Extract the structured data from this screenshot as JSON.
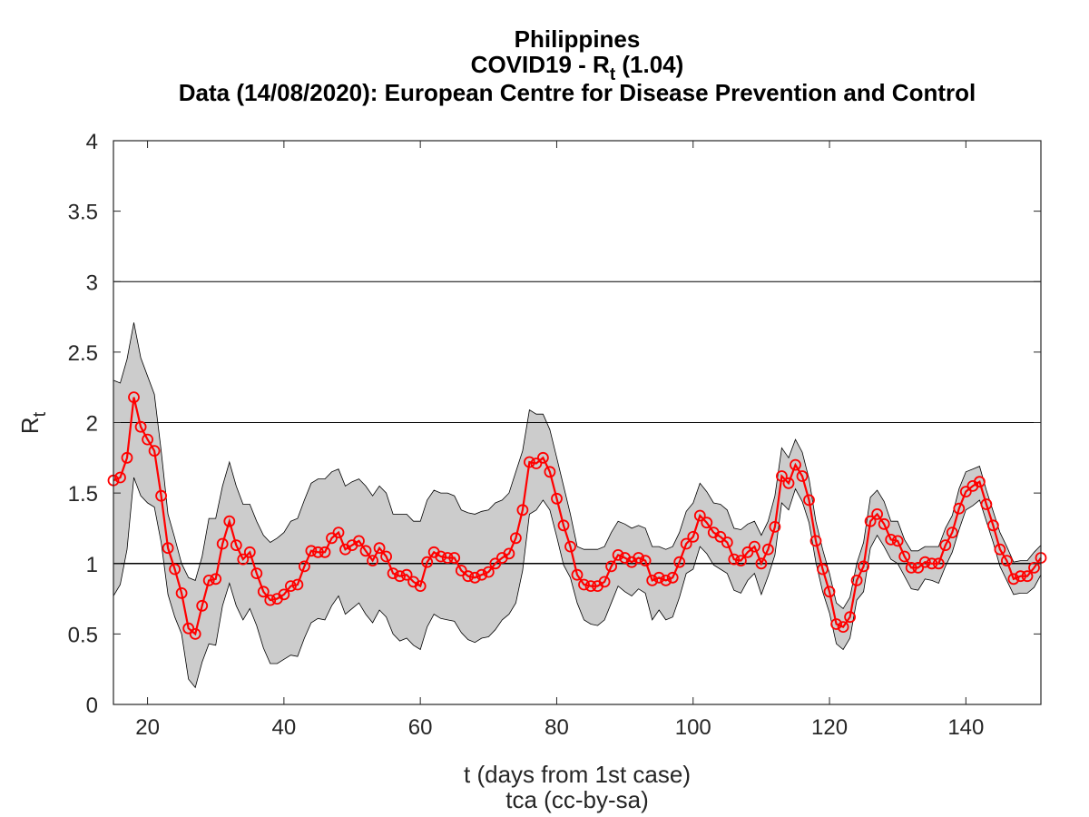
{
  "chart_data": {
    "type": "line",
    "title_line1": "Philippines",
    "title_line2_prefix": "COVID19 - R",
    "title_line2_sub": "t",
    "title_line2_suffix": " (1.04)",
    "title_line3": "Data (14/08/2020): European Centre for Disease Prevention and Control",
    "xlabel": "t (days from 1st case)",
    "ylabel_main": "R",
    "ylabel_sub": "t",
    "footer": "tca (cc-by-sa)",
    "xlim": [
      15,
      151
    ],
    "ylim": [
      0,
      4
    ],
    "x_ticks": [
      20,
      40,
      60,
      80,
      100,
      120,
      140
    ],
    "y_ticks": [
      0,
      0.5,
      1,
      1.5,
      2,
      2.5,
      3,
      3.5,
      4
    ],
    "reference_lines": [
      1,
      2,
      3
    ],
    "colors": {
      "series": "#ff0000",
      "band_fill": "#cccccc",
      "band_edge": "#000000",
      "axis": "#262626"
    },
    "series": [
      {
        "name": "",
        "x": [
          15,
          16,
          17,
          18,
          19,
          20,
          21,
          22,
          23,
          24,
          25,
          26,
          27,
          28,
          29,
          30,
          31,
          32,
          33,
          34,
          35,
          36,
          37,
          38,
          39,
          40,
          41,
          42,
          43,
          44,
          45,
          46,
          47,
          48,
          49,
          50,
          51,
          52,
          53,
          54,
          55,
          56,
          57,
          58,
          59,
          60,
          61,
          62,
          63,
          64,
          65,
          66,
          67,
          68,
          69,
          70,
          71,
          72,
          73,
          74,
          75,
          76,
          77,
          78,
          79,
          80,
          81,
          82,
          83,
          84,
          85,
          86,
          87,
          88,
          89,
          90,
          91,
          92,
          93,
          94,
          95,
          96,
          97,
          98,
          99,
          100,
          101,
          102,
          103,
          104,
          105,
          106,
          107,
          108,
          109,
          110,
          111,
          112,
          113,
          114,
          115,
          116,
          117,
          118,
          119,
          120,
          121,
          122,
          123,
          124,
          125,
          126,
          127,
          128,
          129,
          130,
          131,
          132,
          133,
          134,
          135,
          136,
          137,
          138,
          139,
          140,
          141,
          142,
          143,
          144,
          145,
          146,
          147,
          148,
          149,
          150,
          151
        ],
        "y": [
          1.59,
          1.61,
          1.75,
          2.18,
          1.97,
          1.88,
          1.8,
          1.48,
          1.11,
          0.96,
          0.79,
          0.54,
          0.5,
          0.7,
          0.88,
          0.89,
          1.14,
          1.3,
          1.13,
          1.03,
          1.08,
          0.93,
          0.8,
          0.74,
          0.75,
          0.78,
          0.84,
          0.85,
          0.98,
          1.09,
          1.08,
          1.08,
          1.18,
          1.22,
          1.1,
          1.13,
          1.16,
          1.09,
          1.02,
          1.11,
          1.05,
          0.93,
          0.91,
          0.92,
          0.87,
          0.84,
          1.01,
          1.08,
          1.05,
          1.04,
          1.04,
          0.95,
          0.91,
          0.9,
          0.92,
          0.94,
          1.0,
          1.04,
          1.07,
          1.18,
          1.38,
          1.72,
          1.71,
          1.75,
          1.65,
          1.46,
          1.27,
          1.12,
          0.92,
          0.85,
          0.84,
          0.84,
          0.87,
          0.98,
          1.06,
          1.04,
          1.01,
          1.04,
          1.02,
          0.88,
          0.9,
          0.88,
          0.9,
          1.01,
          1.14,
          1.19,
          1.34,
          1.29,
          1.22,
          1.19,
          1.15,
          1.03,
          1.02,
          1.08,
          1.12,
          1.0,
          1.1,
          1.26,
          1.62,
          1.57,
          1.7,
          1.62,
          1.45,
          1.16,
          0.96,
          0.8,
          0.57,
          0.55,
          0.62,
          0.88,
          0.98,
          1.3,
          1.35,
          1.28,
          1.17,
          1.16,
          1.05,
          0.97,
          0.97,
          1.01,
          1.0,
          1.0,
          1.13,
          1.22,
          1.39,
          1.51,
          1.55,
          1.58,
          1.42,
          1.27,
          1.1,
          1.02,
          0.89,
          0.91,
          0.91,
          0.97,
          1.04
        ]
      }
    ],
    "band": {
      "x": [
        15,
        16,
        17,
        18,
        19,
        20,
        21,
        22,
        23,
        24,
        25,
        26,
        27,
        28,
        29,
        30,
        31,
        32,
        33,
        34,
        35,
        36,
        37,
        38,
        39,
        40,
        41,
        42,
        43,
        44,
        45,
        46,
        47,
        48,
        49,
        50,
        51,
        52,
        53,
        54,
        55,
        56,
        57,
        58,
        59,
        60,
        61,
        62,
        63,
        64,
        65,
        66,
        67,
        68,
        69,
        70,
        71,
        72,
        73,
        74,
        75,
        76,
        77,
        78,
        79,
        80,
        81,
        82,
        83,
        84,
        85,
        86,
        87,
        88,
        89,
        90,
        91,
        92,
        93,
        94,
        95,
        96,
        97,
        98,
        99,
        100,
        101,
        102,
        103,
        104,
        105,
        106,
        107,
        108,
        109,
        110,
        111,
        112,
        113,
        114,
        115,
        116,
        117,
        118,
        119,
        120,
        121,
        122,
        123,
        124,
        125,
        126,
        127,
        128,
        129,
        130,
        131,
        132,
        133,
        134,
        135,
        136,
        137,
        138,
        139,
        140,
        141,
        142,
        143,
        144,
        145,
        146,
        147,
        148,
        149,
        150,
        151
      ],
      "upper": [
        2.3,
        2.28,
        2.45,
        2.71,
        2.46,
        2.33,
        2.2,
        1.8,
        1.35,
        1.18,
        1.0,
        0.9,
        0.88,
        1.05,
        1.32,
        1.32,
        1.55,
        1.72,
        1.55,
        1.42,
        1.42,
        1.3,
        1.2,
        1.15,
        1.18,
        1.22,
        1.3,
        1.32,
        1.45,
        1.57,
        1.6,
        1.6,
        1.65,
        1.67,
        1.55,
        1.58,
        1.6,
        1.55,
        1.48,
        1.55,
        1.5,
        1.35,
        1.35,
        1.35,
        1.3,
        1.3,
        1.45,
        1.52,
        1.5,
        1.5,
        1.48,
        1.38,
        1.36,
        1.35,
        1.37,
        1.38,
        1.43,
        1.45,
        1.5,
        1.65,
        1.8,
        2.09,
        2.06,
        2.06,
        1.95,
        1.75,
        1.55,
        1.35,
        1.12,
        1.1,
        1.1,
        1.1,
        1.12,
        1.22,
        1.3,
        1.28,
        1.25,
        1.27,
        1.25,
        1.12,
        1.12,
        1.1,
        1.12,
        1.22,
        1.37,
        1.43,
        1.57,
        1.51,
        1.43,
        1.42,
        1.38,
        1.25,
        1.24,
        1.28,
        1.3,
        1.2,
        1.3,
        1.48,
        1.82,
        1.75,
        1.88,
        1.79,
        1.6,
        1.3,
        1.1,
        0.93,
        0.72,
        0.68,
        0.76,
        1.0,
        1.15,
        1.47,
        1.52,
        1.44,
        1.3,
        1.3,
        1.17,
        1.09,
        1.09,
        1.12,
        1.12,
        1.12,
        1.25,
        1.34,
        1.53,
        1.65,
        1.67,
        1.69,
        1.52,
        1.37,
        1.22,
        1.12,
        1.01,
        1.02,
        1.02,
        1.08,
        1.13
      ],
      "lower": [
        0.77,
        0.85,
        1.1,
        1.61,
        1.48,
        1.43,
        1.4,
        1.15,
        0.78,
        0.62,
        0.5,
        0.18,
        0.12,
        0.3,
        0.43,
        0.42,
        0.7,
        0.86,
        0.7,
        0.6,
        0.68,
        0.56,
        0.4,
        0.29,
        0.29,
        0.32,
        0.35,
        0.34,
        0.47,
        0.58,
        0.61,
        0.6,
        0.7,
        0.77,
        0.64,
        0.68,
        0.72,
        0.64,
        0.58,
        0.67,
        0.62,
        0.5,
        0.45,
        0.47,
        0.42,
        0.39,
        0.55,
        0.64,
        0.61,
        0.6,
        0.59,
        0.51,
        0.46,
        0.44,
        0.47,
        0.48,
        0.53,
        0.6,
        0.64,
        0.72,
        0.95,
        1.35,
        1.38,
        1.45,
        1.38,
        1.19,
        0.99,
        0.9,
        0.72,
        0.6,
        0.57,
        0.56,
        0.6,
        0.72,
        0.84,
        0.8,
        0.77,
        0.82,
        0.79,
        0.6,
        0.67,
        0.6,
        0.62,
        0.76,
        0.93,
        0.96,
        1.12,
        1.07,
        0.99,
        0.96,
        0.93,
        0.81,
        0.79,
        0.88,
        0.93,
        0.78,
        0.91,
        1.06,
        1.43,
        1.38,
        1.53,
        1.44,
        1.29,
        1.01,
        0.8,
        0.65,
        0.43,
        0.39,
        0.47,
        0.74,
        0.8,
        1.11,
        1.2,
        1.12,
        1.03,
        1.0,
        0.91,
        0.82,
        0.81,
        0.89,
        0.88,
        0.86,
        0.98,
        1.08,
        1.24,
        1.38,
        1.41,
        1.45,
        1.3,
        1.15,
        0.98,
        0.88,
        0.78,
        0.79,
        0.79,
        0.83,
        0.92
      ]
    }
  }
}
